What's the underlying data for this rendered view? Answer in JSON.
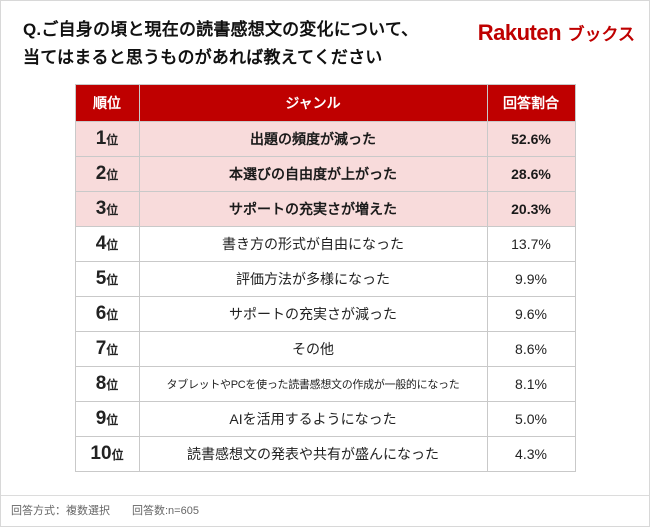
{
  "header": {
    "title_line1": "Q.ご自身の頃と現在の読書感想文の変化について、",
    "title_line2": "当てはまると思うものがあれば教えてください",
    "logo_brand": "Rakuten",
    "logo_product": "ブックス"
  },
  "chart_data": {
    "type": "table",
    "title": "Q.ご自身の頃と現在の読書感想文の変化について、当てはまると思うものがあれば教えてください",
    "columns": [
      "順位",
      "ジャンル",
      "回答割合"
    ],
    "rows": [
      {
        "rank": "1",
        "suffix": "位",
        "genre": "出題の頻度が減った",
        "rate": "52.6%"
      },
      {
        "rank": "2",
        "suffix": "位",
        "genre": "本選びの自由度が上がった",
        "rate": "28.6%"
      },
      {
        "rank": "3",
        "suffix": "位",
        "genre": "サポートの充実さが増えた",
        "rate": "20.3%"
      },
      {
        "rank": "4",
        "suffix": "位",
        "genre": "書き方の形式が自由になった",
        "rate": "13.7%"
      },
      {
        "rank": "5",
        "suffix": "位",
        "genre": "評価方法が多様になった",
        "rate": "9.9%"
      },
      {
        "rank": "6",
        "suffix": "位",
        "genre": "サポートの充実さが減った",
        "rate": "9.6%"
      },
      {
        "rank": "7",
        "suffix": "位",
        "genre": "その他",
        "rate": "8.6%"
      },
      {
        "rank": "8",
        "suffix": "位",
        "genre": "タブレットやPCを使った読書感想文の作成が一般的になった",
        "rate": "8.1%"
      },
      {
        "rank": "9",
        "suffix": "位",
        "genre": "AIを活用するようになった",
        "rate": "5.0%"
      },
      {
        "rank": "10",
        "suffix": "位",
        "genre": "読書感想文の発表や共有が盛んになった",
        "rate": "4.3%"
      }
    ],
    "highlight_rows": [
      0,
      1,
      2
    ],
    "colors": {
      "header_bg": "#bf0000",
      "highlight_bg": "#f8dbdb",
      "logo_red": "#bf0000"
    }
  },
  "footer": {
    "note": "回答方式：複数選択　　回答数:n=605"
  }
}
